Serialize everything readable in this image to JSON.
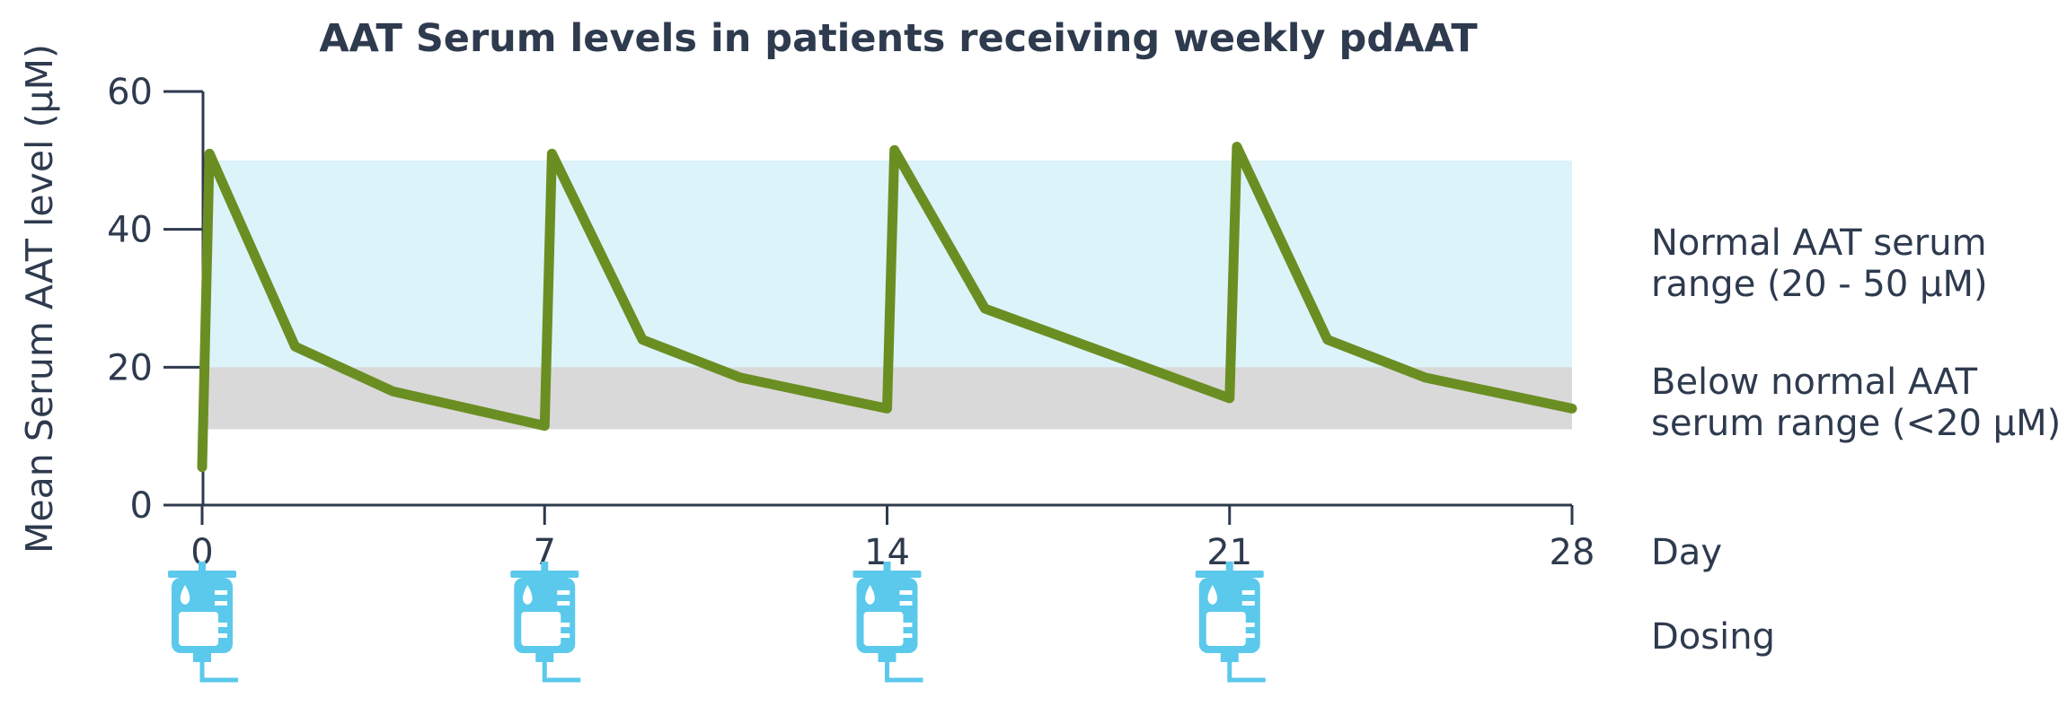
{
  "chart_data": {
    "type": "line",
    "title": "AAT Serum levels in patients receiving  weekly pdAAT",
    "ylabel": "Mean Serum AAT level (μM)",
    "xlabel": "Day",
    "ylim": [
      0,
      60
    ],
    "xlim": [
      -2.1,
      28
    ],
    "yticks": [
      "0",
      "20",
      "40",
      "60"
    ],
    "xticks": [
      "0",
      "7",
      "14",
      "21",
      "28"
    ],
    "grid": false,
    "colors": {
      "line": "#6b8e23",
      "normal_band": "#dcf3fa",
      "below_band": "#d9d9d9",
      "axis": "#2e3a4e",
      "icon": "#5bc9ec"
    },
    "bands": [
      {
        "label": "Normal AAT serum range (20 - 50 μM)",
        "lines": [
          "Normal AAT serum",
          "range (20 - 50 μM)"
        ],
        "y0": 20,
        "y1": 50
      },
      {
        "label": "Below normal AAT serum range (<20  μM)",
        "lines": [
          "Below normal AAT",
          "serum range (<20  μM)"
        ],
        "y0": 11,
        "y1": 20
      }
    ],
    "series": [
      {
        "points": [
          [
            0,
            5.5
          ],
          [
            0.15,
            51
          ],
          [
            1.9,
            23
          ],
          [
            3.9,
            16.5
          ],
          [
            7.0,
            11.5
          ],
          [
            7.15,
            51
          ],
          [
            9.0,
            24
          ],
          [
            11.0,
            18.5
          ],
          [
            14.0,
            14
          ],
          [
            14.15,
            51.5
          ],
          [
            16.0,
            28.5
          ],
          [
            21.0,
            15.5
          ],
          [
            21.15,
            52
          ],
          [
            23.0,
            24
          ],
          [
            25.0,
            18.5
          ],
          [
            28.0,
            14
          ]
        ]
      }
    ],
    "dosing": {
      "label": "Dosing",
      "days": [
        0,
        7,
        14,
        21
      ],
      "icon": "iv-bag-icon"
    }
  }
}
